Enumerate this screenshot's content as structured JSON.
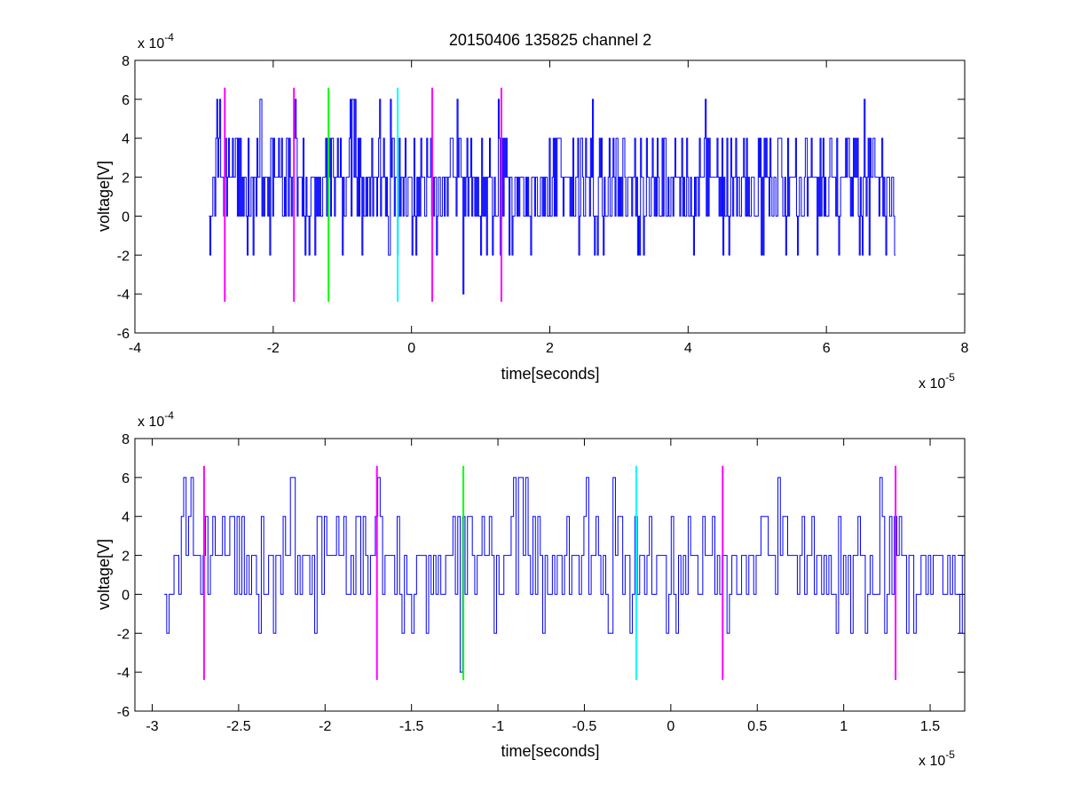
{
  "chart_data": [
    {
      "type": "line",
      "title": "20150406 135825 channel 2",
      "xlabel": "time[seconds]",
      "ylabel": "voltage[V]",
      "x_exponent_label": "x 10",
      "x_exponent": "-5",
      "y_exponent_label": "x 10",
      "y_exponent": "-4",
      "xlim": [
        -4,
        8
      ],
      "ylim": [
        -6,
        8
      ],
      "x_ticks": [
        -4,
        -2,
        0,
        2,
        4,
        6,
        8
      ],
      "x_tick_labels": [
        "-4",
        "-2",
        "0",
        "2",
        "4",
        "6",
        "8"
      ],
      "y_ticks": [
        -6,
        -4,
        -2,
        0,
        2,
        4,
        6,
        8
      ],
      "y_tick_labels": [
        "-6",
        "-4",
        "-2",
        "0",
        "2",
        "4",
        "6",
        "8"
      ],
      "signal": {
        "color": "#0000ff",
        "x_start": -2.93,
        "x_end": 7.0,
        "quantization_step": 2,
        "typical_range": [
          0,
          4
        ],
        "occasional_range": [
          -2,
          6
        ],
        "min": -4
      },
      "markers": [
        {
          "x": -2.7,
          "y_range": [
            -4.4,
            6.6
          ],
          "color": "#ff00ff"
        },
        {
          "x": -1.7,
          "y_range": [
            -4.4,
            6.6
          ],
          "color": "#ff00ff"
        },
        {
          "x": -1.2,
          "y_range": [
            -4.4,
            6.6
          ],
          "color": "#00ff00"
        },
        {
          "x": -0.2,
          "y_range": [
            -4.4,
            6.6
          ],
          "color": "#00ffff"
        },
        {
          "x": 0.3,
          "y_range": [
            -4.4,
            6.6
          ],
          "color": "#ff00ff"
        },
        {
          "x": 1.3,
          "y_range": [
            -4.4,
            6.6
          ],
          "color": "#ff00ff"
        }
      ]
    },
    {
      "type": "line",
      "title": "",
      "xlabel": "time[seconds]",
      "ylabel": "voltage[V]",
      "x_exponent_label": "x 10",
      "x_exponent": "-5",
      "y_exponent_label": "x 10",
      "y_exponent": "-4",
      "xlim": [
        -3.1,
        1.7
      ],
      "ylim": [
        -6,
        8
      ],
      "x_ticks": [
        -3,
        -2.5,
        -2,
        -1.5,
        -1,
        -0.5,
        0,
        0.5,
        1,
        1.5
      ],
      "x_tick_labels": [
        "-3",
        "-2.5",
        "-2",
        "-1.5",
        "-1",
        "-0.5",
        "0",
        "0.5",
        "1",
        "1.5"
      ],
      "y_ticks": [
        -6,
        -4,
        -2,
        0,
        2,
        4,
        6,
        8
      ],
      "y_tick_labels": [
        "-6",
        "-4",
        "-2",
        "0",
        "2",
        "4",
        "6",
        "8"
      ],
      "signal": {
        "color": "#0000ff",
        "x_start": -2.93,
        "x_end": 1.7,
        "quantization_step": 2,
        "typical_range": [
          0,
          4
        ],
        "occasional_range": [
          -2,
          6
        ],
        "min": -4
      },
      "markers": [
        {
          "x": -2.7,
          "y_range": [
            -4.4,
            6.6
          ],
          "color": "#ff00ff"
        },
        {
          "x": -1.7,
          "y_range": [
            -4.4,
            6.6
          ],
          "color": "#ff00ff"
        },
        {
          "x": -1.2,
          "y_range": [
            -4.4,
            6.6
          ],
          "color": "#00ff00"
        },
        {
          "x": -0.2,
          "y_range": [
            -4.4,
            6.6
          ],
          "color": "#00ffff"
        },
        {
          "x": 0.3,
          "y_range": [
            -4.4,
            6.6
          ],
          "color": "#ff00ff"
        },
        {
          "x": 1.3,
          "y_range": [
            -4.4,
            6.6
          ],
          "color": "#ff00ff"
        }
      ]
    }
  ]
}
